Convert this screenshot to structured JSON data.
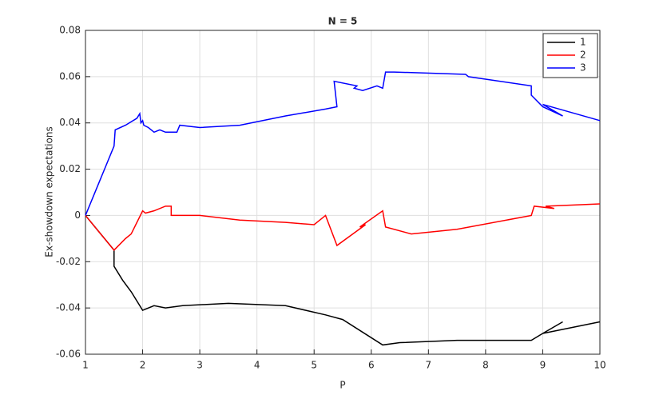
{
  "chart_data": {
    "type": "line",
    "title": "N = 5",
    "x_label": "P",
    "y_label": "Ex-showdown expectations",
    "xlim": [
      1,
      10
    ],
    "xticks": [
      1,
      2,
      3,
      4,
      5,
      6,
      7,
      8,
      9,
      10
    ],
    "ylim": [
      -0.06,
      0.08
    ],
    "yticks": [
      -0.06,
      -0.04,
      -0.02,
      0,
      0.02,
      0.04,
      0.06,
      0.08
    ],
    "grid": true,
    "legend": "top-right",
    "series": [
      {
        "name": "1",
        "color": "#000000",
        "x": [
          1,
          1.5,
          1.5,
          1.65,
          1.8,
          2.0,
          2.2,
          2.4,
          2.7,
          3.5,
          4.5,
          5.2,
          5.5,
          6.2,
          6.5,
          7.5,
          8.8,
          9.0,
          9.35,
          9.0,
          10
        ],
        "values": [
          0,
          -0.015,
          -0.022,
          -0.028,
          -0.033,
          -0.041,
          -0.039,
          -0.04,
          -0.039,
          -0.038,
          -0.039,
          -0.043,
          -0.045,
          -0.056,
          -0.055,
          -0.054,
          -0.054,
          -0.051,
          -0.046,
          -0.051,
          -0.046
        ]
      },
      {
        "name": "2",
        "color": "#ff0000",
        "x": [
          1,
          1.5,
          1.7,
          1.8,
          1.9,
          2.0,
          2.05,
          2.2,
          2.4,
          2.5,
          2.5,
          3.0,
          3.7,
          4.5,
          5.0,
          5.2,
          5.4,
          5.9,
          5.8,
          6.2,
          6.25,
          6.7,
          7.5,
          8.8,
          8.85,
          9.2,
          9.05,
          10
        ],
        "values": [
          0,
          -0.015,
          -0.01,
          -0.008,
          -0.003,
          0.002,
          0.001,
          0.002,
          0.004,
          0.004,
          0.0,
          0.0,
          -0.002,
          -0.003,
          -0.004,
          0.0,
          -0.013,
          -0.004,
          -0.005,
          0.002,
          -0.005,
          -0.008,
          -0.006,
          0.0,
          0.004,
          0.003,
          0.004,
          0.005
        ]
      },
      {
        "name": "3",
        "color": "#0000ff",
        "x": [
          1,
          1.5,
          1.52,
          1.7,
          1.9,
          1.95,
          1.97,
          2.0,
          2.02,
          2.1,
          2.2,
          2.3,
          2.4,
          2.6,
          2.65,
          3.0,
          3.7,
          4.5,
          5.2,
          5.4,
          5.35,
          5.75,
          5.7,
          5.85,
          6.1,
          6.2,
          6.25,
          6.4,
          7.65,
          7.7,
          8.8,
          8.8,
          9.0,
          9.35,
          9.0,
          10
        ],
        "values": [
          0,
          0.03,
          0.037,
          0.039,
          0.042,
          0.044,
          0.04,
          0.041,
          0.039,
          0.038,
          0.036,
          0.037,
          0.036,
          0.036,
          0.039,
          0.038,
          0.039,
          0.043,
          0.046,
          0.047,
          0.058,
          0.056,
          0.055,
          0.054,
          0.056,
          0.055,
          0.062,
          0.062,
          0.061,
          0.06,
          0.056,
          0.052,
          0.047,
          0.043,
          0.048,
          0.041
        ]
      }
    ]
  }
}
